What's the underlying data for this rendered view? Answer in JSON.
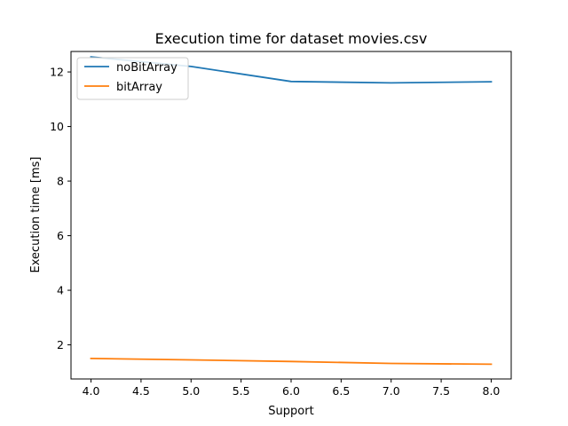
{
  "chart_data": {
    "type": "line",
    "title": "Execution time for dataset movies.csv",
    "xlabel": "Support",
    "ylabel": "Execution time [ms]",
    "xlim": [
      3.8,
      8.2
    ],
    "ylim": [
      0.75,
      12.75
    ],
    "xticks": [
      4.0,
      4.5,
      5.0,
      5.5,
      6.0,
      6.5,
      7.0,
      7.5,
      8.0
    ],
    "xtick_labels": [
      "4.0",
      "4.5",
      "5.0",
      "5.5",
      "6.0",
      "6.5",
      "7.0",
      "7.5",
      "8.0"
    ],
    "yticks": [
      2,
      4,
      6,
      8,
      10,
      12
    ],
    "ytick_labels": [
      "2",
      "4",
      "6",
      "8",
      "10",
      "12"
    ],
    "grid": false,
    "legend_position": "top-left",
    "x": [
      4,
      5,
      6,
      7,
      8
    ],
    "series": [
      {
        "name": "noBitArray",
        "color": "#1f77b4",
        "values": [
          12.55,
          12.2,
          11.65,
          11.6,
          11.64
        ]
      },
      {
        "name": "bitArray",
        "color": "#ff7f0e",
        "values": [
          1.5,
          1.45,
          1.39,
          1.32,
          1.29
        ]
      }
    ]
  }
}
